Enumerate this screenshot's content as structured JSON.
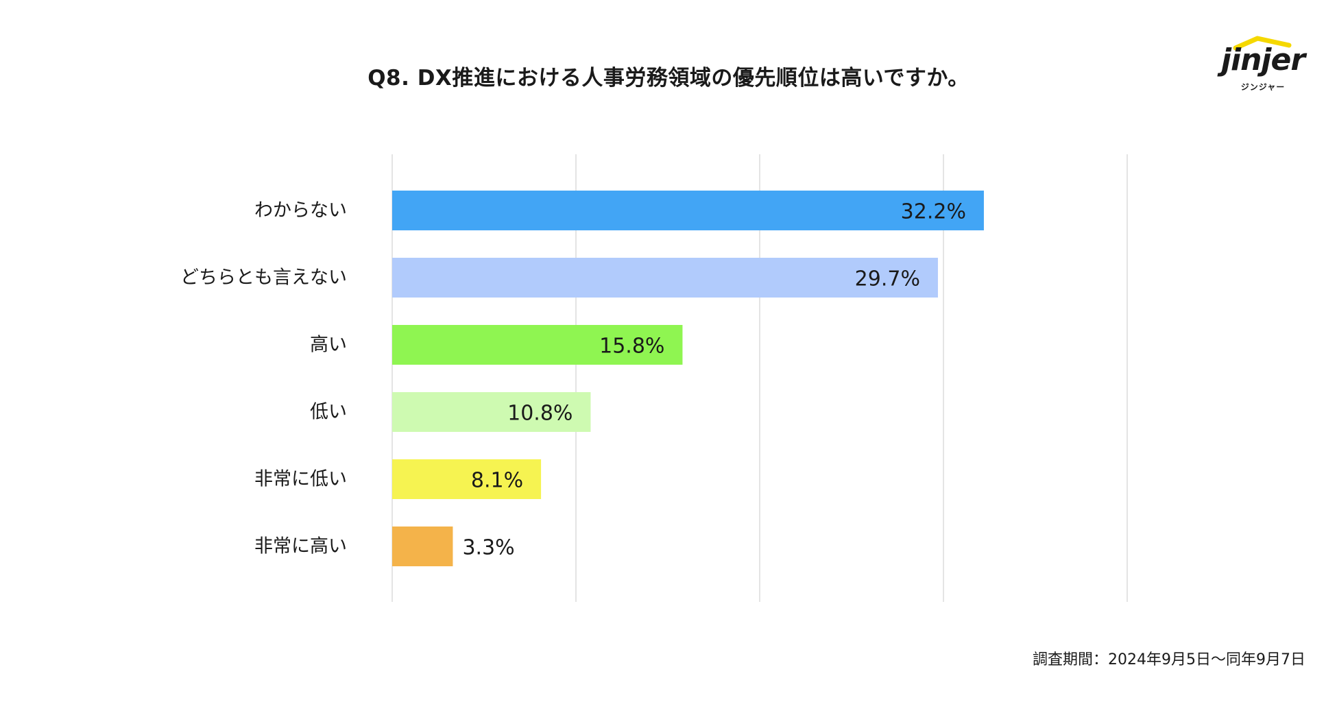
{
  "header": {
    "title": "Q8. DX推進における人事労務領域の優先順位は高いですか。"
  },
  "logo": {
    "wordmark": "jinjer",
    "subtext": "ジンジャー",
    "accent_color": "#F5D800"
  },
  "chart_data": {
    "type": "bar",
    "orientation": "horizontal",
    "title": "Q8. DX推進における人事労務領域の優先順位は高いですか。",
    "categories": [
      "わからない",
      "どちらとも言えない",
      "高い",
      "低い",
      "非常に低い",
      "非常に高い"
    ],
    "values": [
      32.2,
      29.7,
      15.8,
      10.8,
      8.1,
      3.3
    ],
    "value_labels": [
      "32.2%",
      "29.7%",
      "15.8%",
      "10.8%",
      "8.1%",
      "3.3%"
    ],
    "colors": [
      "#42A5F5",
      "#B1CBFC",
      "#8FF551",
      "#CEFAB1",
      "#F6F351",
      "#F4B34A"
    ],
    "xlim": [
      0,
      40
    ],
    "gridlines": [
      0,
      10,
      20,
      30,
      40
    ],
    "grid": true,
    "legend": "none"
  },
  "footer": {
    "survey_period": "調査期間：2024年9月5日〜同年9月7日"
  }
}
